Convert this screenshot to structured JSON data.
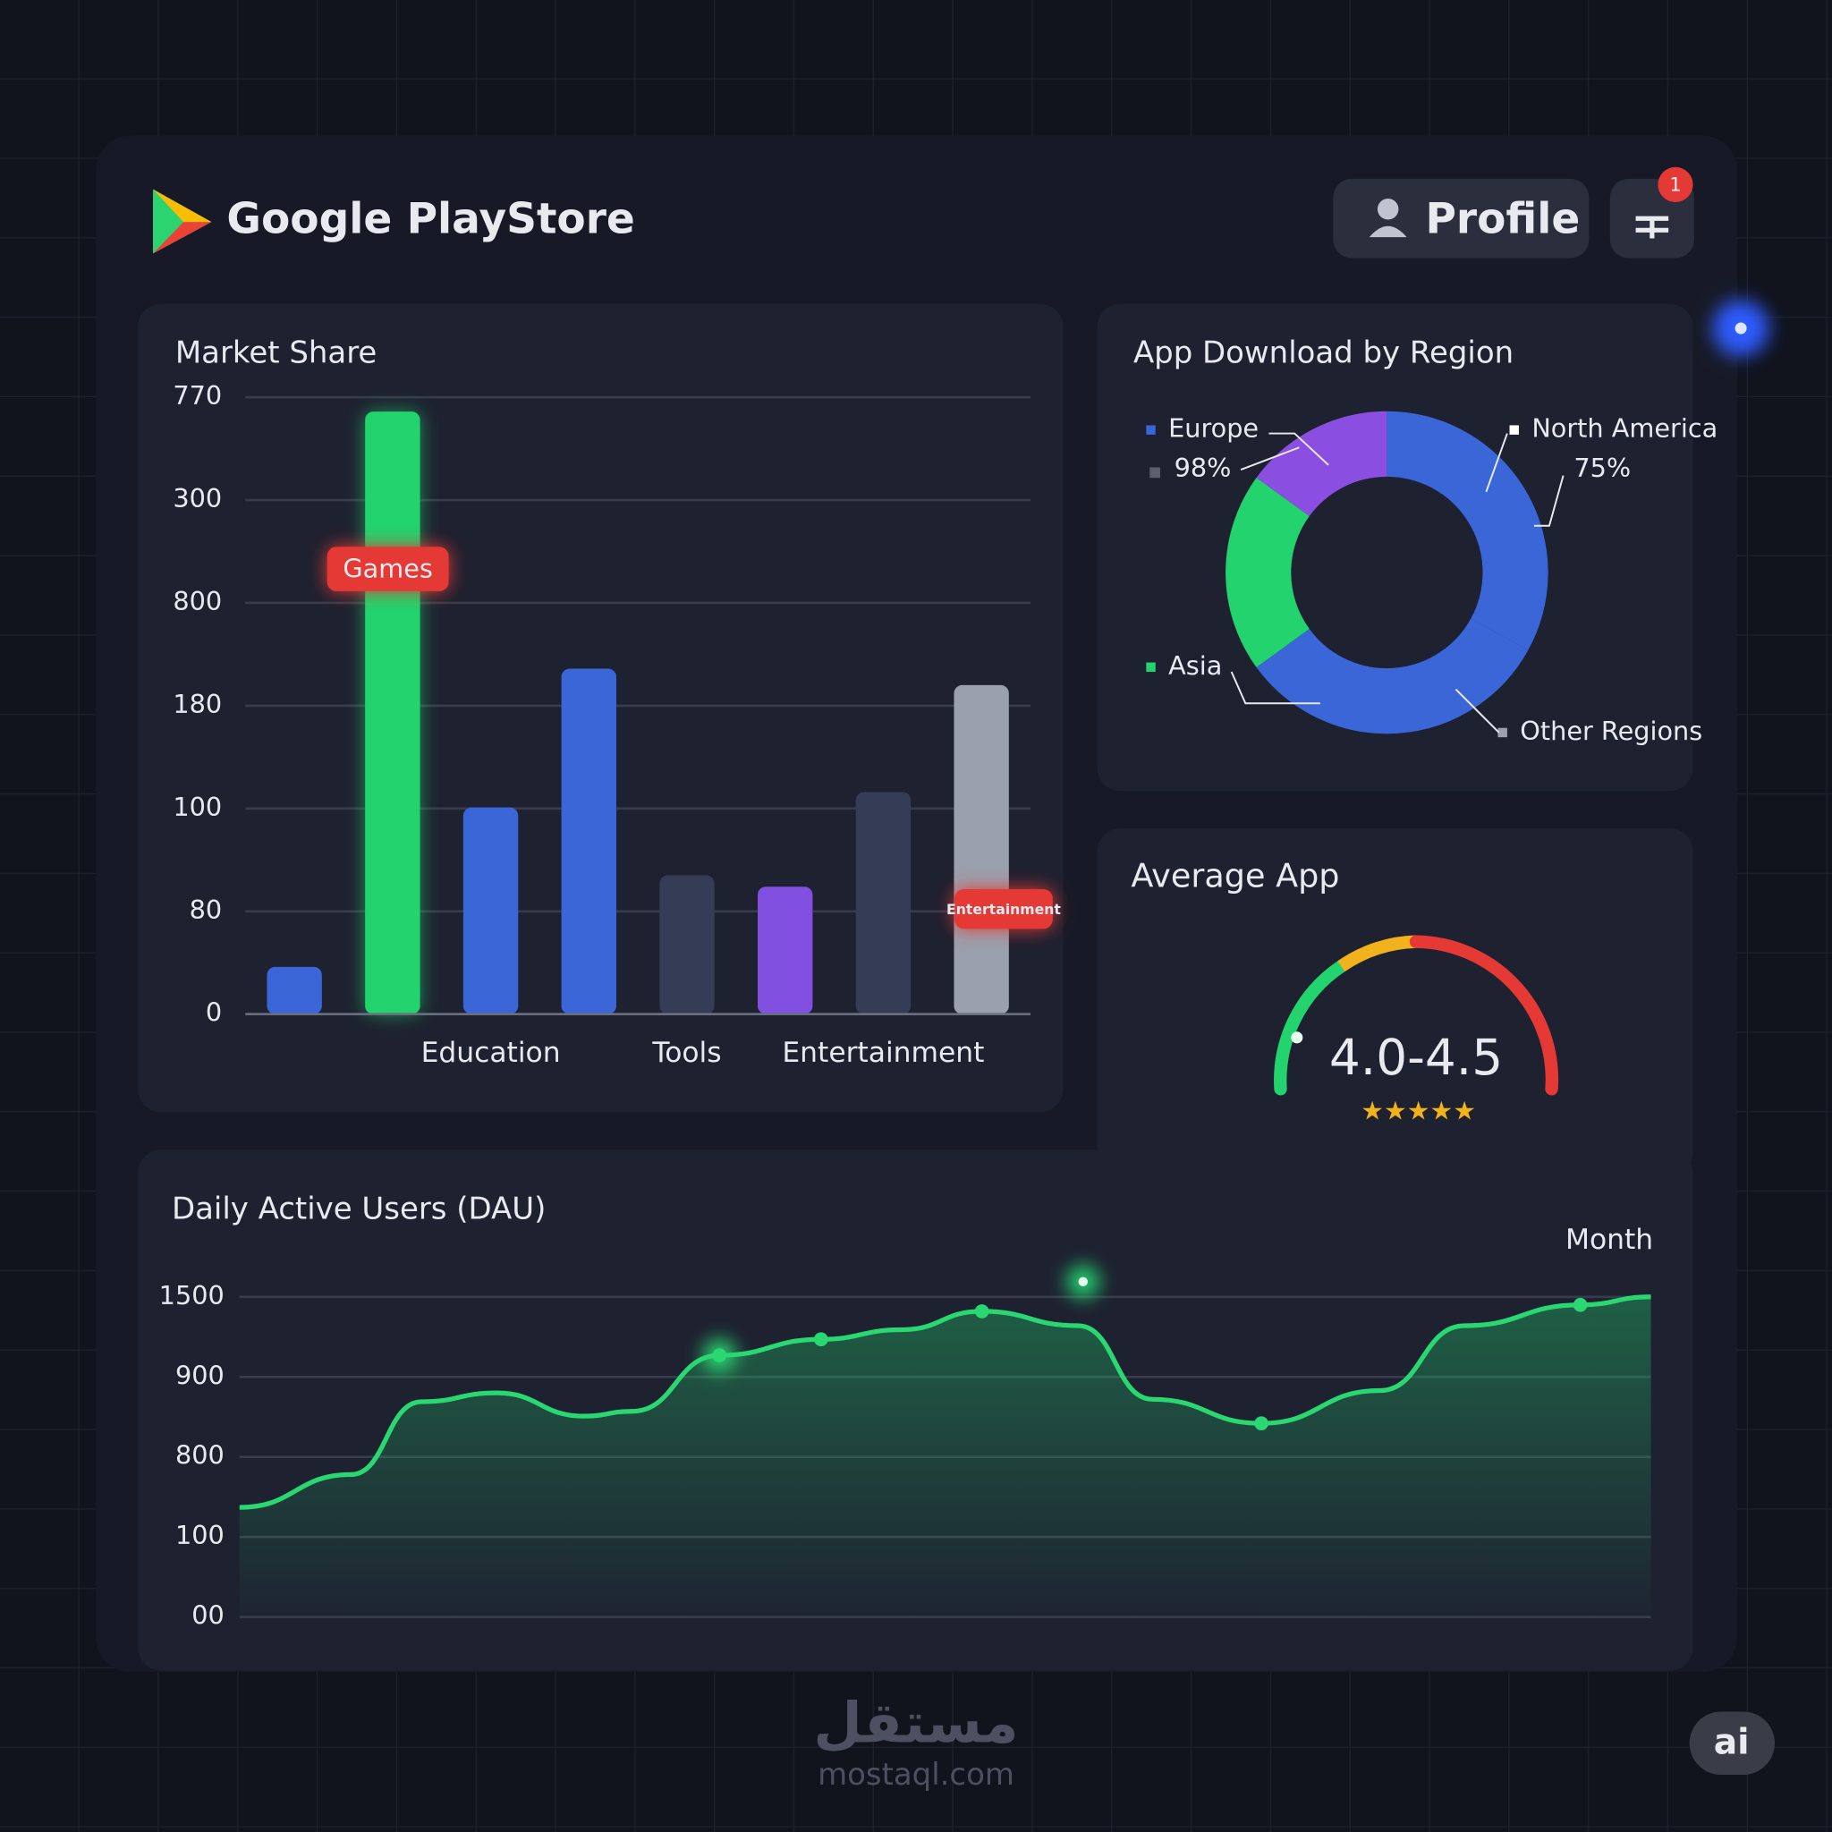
{
  "header": {
    "title": "Google PlayStore",
    "profile": "Profile",
    "badge": "1"
  },
  "chart_data": [
    {
      "type": "bar",
      "title": "Market Share",
      "categories": [
        null,
        null,
        "Education",
        null,
        "Tools",
        null,
        "Entertainment",
        null
      ],
      "values": [
        0.46,
        5.86,
        2.01,
        3.36,
        1.35,
        1.24,
        2.16,
        3.2
      ],
      "colors": [
        "#3a66d8",
        "#22d36e",
        "#3a66d8",
        "#3a66d8",
        "#343d55",
        "#8250e0",
        "#343d55",
        "#9aa0ad"
      ],
      "annotations": [
        "Games",
        "Entertainment"
      ],
      "ylim": [
        0,
        6
      ],
      "yticks": [
        0,
        {
          "value": 1,
          "label": "80"
        },
        {
          "value": 2,
          "label": "100"
        },
        {
          "value": 3,
          "label": "180"
        },
        {
          "value": 4,
          "label": "800"
        },
        {
          "value": 5,
          "label": "300"
        },
        {
          "value": 6,
          "label": "770"
        }
      ],
      "grid": true
    },
    {
      "type": "donut",
      "title": "App Download by Region",
      "categories": [
        "North America",
        "Other Regions",
        "Asia",
        "Europe"
      ],
      "values": [
        33,
        32,
        20,
        15
      ],
      "colors": [
        "#3a66d8",
        "#3a66d8",
        "#22d36e",
        "#8a4fe0"
      ],
      "legend_colors": [
        "#ffffff",
        "#9aa0ad",
        "#22d36e",
        "#3a66d8"
      ],
      "annotations": [
        "98%",
        "75%"
      ]
    },
    {
      "type": "gauge",
      "title": "Average App",
      "value_label": "4.0-4.5",
      "stars": "★★★★★"
    },
    {
      "type": "line",
      "title": "Daily Active Users (DAU)",
      "x_label": "Month",
      "x": [
        0,
        7.9,
        12.9,
        18.2,
        24.4,
        27.8,
        34.0,
        41.2,
        46.9,
        52.6,
        59.4,
        64.7,
        72.4,
        80.8,
        86.8,
        95.0,
        100
      ],
      "series": [
        {
          "name": "DAU",
          "color": "#2ad872",
          "values": [
            1.37,
            1.78,
            2.69,
            2.8,
            2.51,
            2.57,
            3.27,
            3.47,
            3.59,
            3.82,
            3.64,
            2.72,
            2.42,
            2.83,
            3.64,
            3.9,
            4.0
          ]
        }
      ],
      "xlim": [
        0,
        100
      ],
      "ylim": [
        0,
        4
      ],
      "yticks": [
        {
          "value": 0,
          "label": "00"
        },
        {
          "value": 1,
          "label": "100"
        },
        {
          "value": 2,
          "label": "800"
        },
        {
          "value": 3,
          "label": "900"
        },
        {
          "value": 4,
          "label": "1500"
        }
      ],
      "grid": true
    }
  ],
  "watermark": {
    "arabic": "مستقل",
    "site": "mostaql.com",
    "badge": "ai"
  }
}
